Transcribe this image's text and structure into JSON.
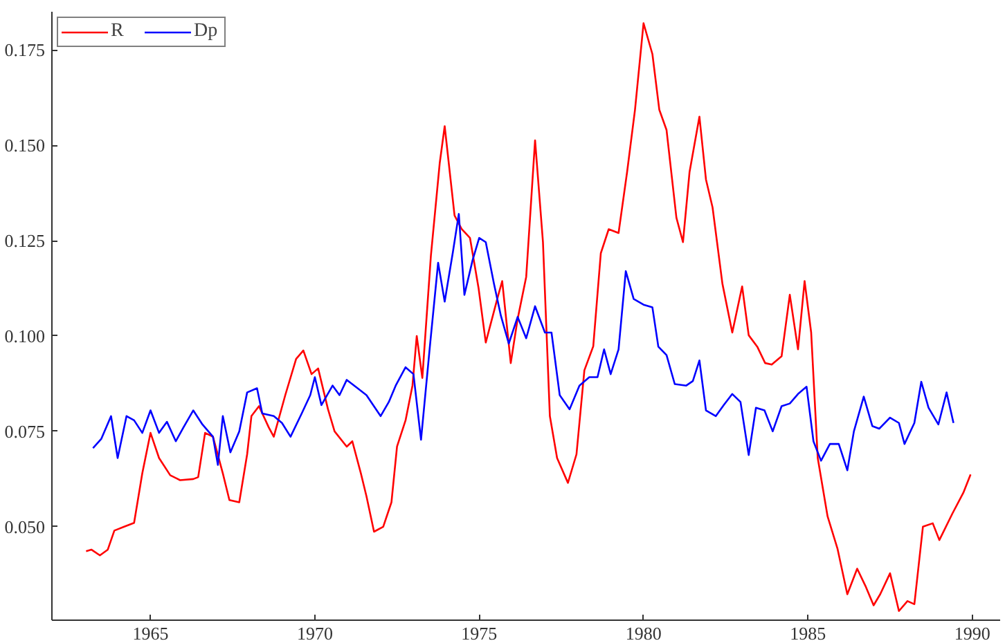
{
  "chart_data": {
    "type": "line",
    "xlim": [
      1962.0,
      1990.85
    ],
    "ylim": [
      0.0255,
      0.185
    ],
    "xticks": [
      1965,
      1970,
      1975,
      1980,
      1985,
      1990
    ],
    "yticks": [
      {
        "value": 0.05,
        "label": "0.050"
      },
      {
        "value": 0.075,
        "label": "0.075"
      },
      {
        "value": 0.1,
        "label": "0.100"
      },
      {
        "value": 0.125,
        "label": "0.125"
      },
      {
        "value": 0.15,
        "label": "0.150"
      },
      {
        "value": 0.175,
        "label": "0.175"
      }
    ],
    "grid": false,
    "legend": "top left",
    "marker": "none",
    "line_style": "solid",
    "series": [
      {
        "name": "R",
        "color": "#ff0000",
        "x": [
          1963.04,
          1963.2,
          1963.46,
          1963.7,
          1963.9,
          1964.2,
          1964.5,
          1964.75,
          1965,
          1965.26,
          1965.6,
          1965.9,
          1966.3,
          1966.45,
          1966.66,
          1966.9,
          1967.2,
          1967.4,
          1967.7,
          1967.94,
          1968.07,
          1968.3,
          1968.6,
          1968.75,
          1969.1,
          1969.43,
          1969.65,
          1969.9,
          1970.1,
          1970.4,
          1970.6,
          1970.97,
          1971.14,
          1971.4,
          1971.57,
          1971.8,
          1972.08,
          1972.33,
          1972.5,
          1972.76,
          1972.97,
          1973.1,
          1973.27,
          1973.53,
          1973.8,
          1973.95,
          1974.25,
          1974.47,
          1974.72,
          1974.98,
          1975.2,
          1975.57,
          1975.7,
          1975.96,
          1976.17,
          1976.43,
          1976.7,
          1976.94,
          1977.15,
          1977.37,
          1977.7,
          1977.96,
          1978.2,
          1978.47,
          1978.7,
          1978.94,
          1979.24,
          1979.5,
          1979.74,
          1980,
          1980.27,
          1980.48,
          1980.7,
          1981,
          1981.2,
          1981.4,
          1981.7,
          1981.9,
          1982.1,
          1982.4,
          1982.7,
          1983,
          1983.2,
          1983.46,
          1983.7,
          1983.9,
          1984.2,
          1984.45,
          1984.7,
          1984.9,
          1985.1,
          1985.3,
          1985.6,
          1985.9,
          1986.2,
          1986.5,
          1986.75,
          1987,
          1987.2,
          1987.5,
          1987.77,
          1988.03,
          1988.24,
          1988.5,
          1988.8,
          1989,
          1989.4,
          1989.73,
          1989.95
        ],
        "values": [
          0.0436,
          0.044,
          0.0425,
          0.044,
          0.049,
          0.05,
          0.051,
          0.064,
          0.0746,
          0.068,
          0.0635,
          0.0622,
          0.0625,
          0.063,
          0.0746,
          0.0736,
          0.064,
          0.057,
          0.0564,
          0.069,
          0.079,
          0.0816,
          0.076,
          0.0736,
          0.0845,
          0.094,
          0.0962,
          0.09,
          0.0915,
          0.0808,
          0.075,
          0.071,
          0.0724,
          0.064,
          0.058,
          0.0487,
          0.05,
          0.0564,
          0.071,
          0.0779,
          0.087,
          0.1,
          0.089,
          0.121,
          0.1454,
          0.155,
          0.1316,
          0.128,
          0.1257,
          0.1126,
          0.0983,
          0.1104,
          0.1144,
          0.0929,
          0.1045,
          0.1155,
          0.1513,
          0.1246,
          0.079,
          0.068,
          0.0615,
          0.069,
          0.091,
          0.0973,
          0.1217,
          0.128,
          0.127,
          0.143,
          0.1593,
          0.182,
          0.1739,
          0.1593,
          0.154,
          0.131,
          0.1246,
          0.143,
          0.1575,
          0.141,
          0.1337,
          0.1137,
          0.1009,
          0.113,
          0.1002,
          0.0972,
          0.0929,
          0.0925,
          0.0947,
          0.1108,
          0.0965,
          0.1144,
          0.1009,
          0.068,
          0.0527,
          0.0443,
          0.0323,
          0.039,
          0.0345,
          0.0294,
          0.0323,
          0.0378,
          0.0279,
          0.0305,
          0.0297,
          0.05,
          0.0509,
          0.0465,
          0.0535,
          0.0589,
          0.0637
        ]
      },
      {
        "name": "Dp",
        "color": "#0000ff",
        "x": [
          1963.25,
          1963.5,
          1963.8,
          1964.0,
          1964.27,
          1964.5,
          1964.75,
          1965,
          1965.26,
          1965.5,
          1965.77,
          1966.0,
          1966.3,
          1966.58,
          1966.9,
          1967.05,
          1967.2,
          1967.43,
          1967.7,
          1967.94,
          1968.24,
          1968.4,
          1968.75,
          1969.0,
          1969.26,
          1969.6,
          1969.86,
          1970,
          1970.2,
          1970.54,
          1970.75,
          1970.97,
          1971.3,
          1971.57,
          1972,
          1972.25,
          1972.46,
          1972.76,
          1973.0,
          1973.23,
          1973.5,
          1973.75,
          1973.95,
          1974.2,
          1974.38,
          1974.55,
          1974.8,
          1975,
          1975.2,
          1975.45,
          1975.66,
          1975.9,
          1976.17,
          1976.43,
          1976.7,
          1977.0,
          1977.2,
          1977.45,
          1977.75,
          1978.05,
          1978.35,
          1978.6,
          1978.8,
          1979.0,
          1979.24,
          1979.46,
          1979.7,
          1980,
          1980.27,
          1980.45,
          1980.7,
          1980.95,
          1981.3,
          1981.5,
          1981.7,
          1981.9,
          1982.2,
          1982.45,
          1982.7,
          1982.95,
          1983.2,
          1983.42,
          1983.68,
          1983.93,
          1984.2,
          1984.45,
          1984.7,
          1984.96,
          1985.17,
          1985.4,
          1985.67,
          1985.94,
          1986.2,
          1986.4,
          1986.7,
          1986.96,
          1987.17,
          1987.5,
          1987.77,
          1987.94,
          1988.24,
          1988.45,
          1988.67,
          1988.97,
          1989.22,
          1989.43
        ],
        "values": [
          0.0706,
          0.073,
          0.079,
          0.068,
          0.079,
          0.0779,
          0.0746,
          0.0805,
          0.0746,
          0.0775,
          0.0724,
          0.076,
          0.0805,
          0.0768,
          0.0736,
          0.0662,
          0.079,
          0.0695,
          0.075,
          0.0852,
          0.0863,
          0.0797,
          0.079,
          0.0772,
          0.0736,
          0.0797,
          0.0845,
          0.0892,
          0.0819,
          0.087,
          0.0845,
          0.0885,
          0.0863,
          0.0845,
          0.079,
          0.0827,
          0.087,
          0.0918,
          0.09,
          0.0728,
          0.0973,
          0.1192,
          0.109,
          0.122,
          0.132,
          0.1108,
          0.1199,
          0.1257,
          0.1246,
          0.1137,
          0.1053,
          0.098,
          0.105,
          0.0994,
          0.1078,
          0.1009,
          0.1009,
          0.0845,
          0.0808,
          0.087,
          0.0892,
          0.0892,
          0.0965,
          0.09,
          0.0965,
          0.117,
          0.1097,
          0.1082,
          0.1075,
          0.0972,
          0.095,
          0.0874,
          0.087,
          0.0882,
          0.0936,
          0.0805,
          0.079,
          0.082,
          0.0848,
          0.0827,
          0.0688,
          0.0812,
          0.0805,
          0.075,
          0.0816,
          0.0823,
          0.0848,
          0.0867,
          0.0724,
          0.0673,
          0.0717,
          0.0717,
          0.0648,
          0.075,
          0.0841,
          0.0764,
          0.0757,
          0.0786,
          0.0772,
          0.0717,
          0.0772,
          0.088,
          0.0812,
          0.0768,
          0.0852,
          0.0772
        ]
      }
    ]
  }
}
